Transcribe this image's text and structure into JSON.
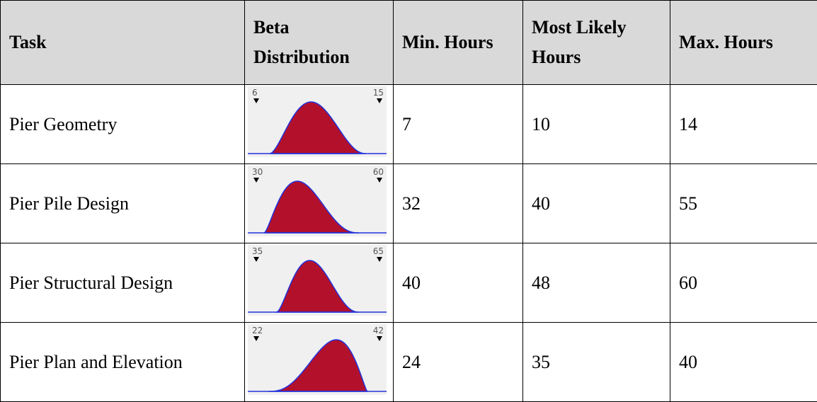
{
  "table": {
    "header": [
      "Task",
      "Beta Distribution",
      "Min. Hours",
      "Most Likely Hours",
      "Max. Hours"
    ],
    "rows": [
      {
        "task": "Pier Geometry",
        "dist_low": 6,
        "dist_high": 15,
        "min": 7,
        "likely": 10,
        "max": 14
      },
      {
        "task": "Pier Pile Design",
        "dist_low": 30,
        "dist_high": 60,
        "min": 32,
        "likely": 40,
        "max": 55
      },
      {
        "task": "Pier Structural Design",
        "dist_low": 35,
        "dist_high": 65,
        "min": 40,
        "likely": 48,
        "max": 60
      },
      {
        "task": "Pier Plan and Elevation",
        "dist_low": 22,
        "dist_high": 42,
        "min": 24,
        "likely": 35,
        "max": 40
      }
    ]
  }
}
